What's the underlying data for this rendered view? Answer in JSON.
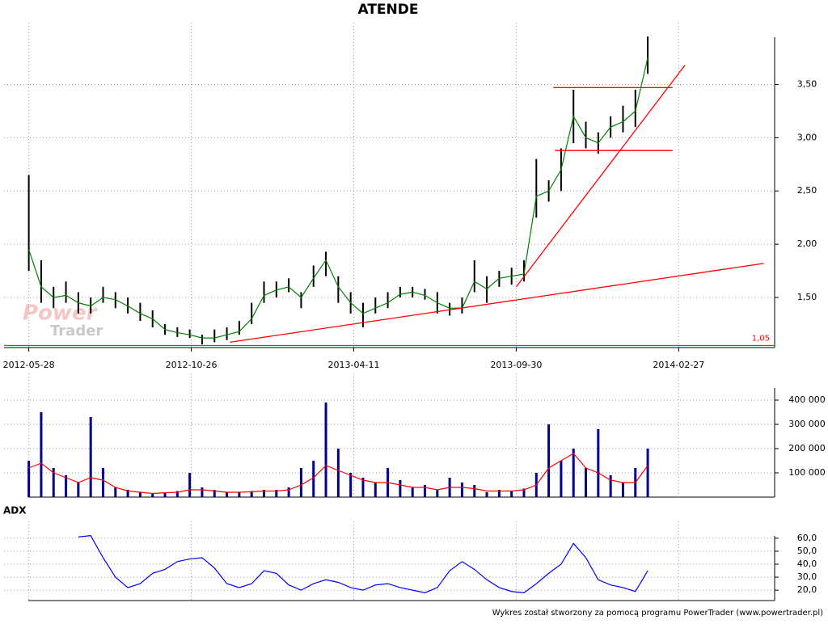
{
  "chart_data": [
    {
      "type": "ohlc",
      "title": "ATENDE",
      "color": "#000000",
      "x": [
        0,
        8,
        16,
        24,
        32,
        40,
        48,
        56,
        64,
        72,
        80,
        88,
        96,
        104,
        112,
        120,
        128,
        136,
        144,
        152,
        160,
        168,
        176,
        184,
        192,
        200,
        208,
        216,
        224,
        232,
        240,
        248,
        256,
        264,
        272,
        280,
        288,
        296,
        304,
        312,
        320,
        328,
        336,
        344,
        352,
        360,
        368,
        376,
        384,
        392,
        400
      ],
      "high": [
        2.65,
        1.85,
        1.6,
        1.65,
        1.55,
        1.5,
        1.6,
        1.55,
        1.5,
        1.45,
        1.38,
        1.25,
        1.22,
        1.2,
        1.15,
        1.2,
        1.22,
        1.28,
        1.45,
        1.65,
        1.65,
        1.68,
        1.55,
        1.8,
        1.93,
        1.7,
        1.55,
        1.45,
        1.5,
        1.55,
        1.6,
        1.6,
        1.58,
        1.55,
        1.45,
        1.5,
        1.85,
        1.7,
        1.75,
        1.78,
        1.85,
        2.8,
        2.6,
        2.9,
        3.45,
        3.15,
        3.05,
        3.2,
        3.3,
        3.45,
        3.95
      ],
      "low": [
        1.75,
        1.45,
        1.4,
        1.45,
        1.35,
        1.35,
        1.45,
        1.4,
        1.35,
        1.28,
        1.22,
        1.15,
        1.13,
        1.12,
        1.06,
        1.08,
        1.1,
        1.15,
        1.25,
        1.45,
        1.5,
        1.55,
        1.4,
        1.6,
        1.7,
        1.45,
        1.35,
        1.22,
        1.35,
        1.4,
        1.5,
        1.5,
        1.48,
        1.35,
        1.33,
        1.35,
        1.55,
        1.45,
        1.6,
        1.62,
        1.65,
        2.25,
        2.4,
        2.5,
        2.95,
        2.9,
        2.85,
        3.0,
        3.05,
        3.1,
        3.6
      ],
      "ma": {
        "color": "#008000",
        "values": [
          1.95,
          1.6,
          1.5,
          1.52,
          1.45,
          1.42,
          1.5,
          1.48,
          1.42,
          1.35,
          1.3,
          1.2,
          1.17,
          1.15,
          1.12,
          1.12,
          1.15,
          1.18,
          1.3,
          1.52,
          1.57,
          1.6,
          1.5,
          1.68,
          1.85,
          1.6,
          1.45,
          1.35,
          1.4,
          1.45,
          1.53,
          1.55,
          1.52,
          1.45,
          1.4,
          1.4,
          1.65,
          1.58,
          1.68,
          1.7,
          1.72,
          2.45,
          2.5,
          2.7,
          3.2,
          3.0,
          2.95,
          3.1,
          3.15,
          3.25,
          3.75
        ]
      },
      "xlim": [
        -16,
        482
      ],
      "xticks": [
        {
          "value": 0,
          "label": "2012-05-28"
        },
        {
          "value": 105,
          "label": "2012-10-26"
        },
        {
          "value": 210,
          "label": "2013-04-11"
        },
        {
          "value": 315,
          "label": "2013-09-30"
        },
        {
          "value": 420,
          "label": "2014-02-27"
        }
      ],
      "ylim": [
        1.03,
        4.08
      ],
      "yticks": [
        {
          "value": 1.5,
          "label": "1,50"
        },
        {
          "value": 2,
          "label": "2,00"
        },
        {
          "value": 2.5,
          "label": "2,50"
        },
        {
          "value": 3,
          "label": "3,00"
        },
        {
          "value": 3.5,
          "label": "3,50"
        }
      ],
      "hline": {
        "value": 1.05,
        "label": "1,05",
        "color": "#ff0000"
      },
      "lines": {
        "color": "#ff0000",
        "items": [
          {
            "x": [
              130,
              475
            ],
            "y": [
              1.08,
              1.82
            ]
          },
          {
            "x": [
              315,
              424
            ],
            "y": [
              1.6,
              3.68
            ]
          },
          {
            "x": [
              339,
              416
            ],
            "y": [
              3.47,
              3.47
            ]
          },
          {
            "x": [
              340,
              416
            ],
            "y": [
              2.88,
              2.88
            ]
          }
        ]
      },
      "grid": true
    },
    {
      "type": "bar",
      "color": "#00008b",
      "x": [
        0,
        8,
        16,
        24,
        32,
        40,
        48,
        56,
        64,
        72,
        80,
        88,
        96,
        104,
        112,
        120,
        128,
        136,
        144,
        152,
        160,
        168,
        176,
        184,
        192,
        200,
        208,
        216,
        224,
        232,
        240,
        248,
        256,
        264,
        272,
        280,
        288,
        296,
        304,
        312,
        320,
        328,
        336,
        344,
        352,
        360,
        368,
        376,
        384,
        392,
        400
      ],
      "values": [
        150000,
        350000,
        120000,
        90000,
        60000,
        330000,
        120000,
        40000,
        30000,
        20000,
        15000,
        20000,
        25000,
        100000,
        40000,
        30000,
        20000,
        20000,
        25000,
        30000,
        30000,
        40000,
        120000,
        150000,
        390000,
        200000,
        100000,
        80000,
        60000,
        120000,
        70000,
        40000,
        50000,
        30000,
        80000,
        60000,
        50000,
        20000,
        30000,
        25000,
        35000,
        100000,
        300000,
        150000,
        200000,
        120000,
        280000,
        90000,
        60000,
        120000,
        200000
      ],
      "ma": {
        "color": "#ff0000",
        "values": [
          120000,
          140000,
          100000,
          80000,
          60000,
          80000,
          70000,
          40000,
          25000,
          20000,
          15000,
          18000,
          20000,
          30000,
          30000,
          25000,
          20000,
          20000,
          22000,
          25000,
          25000,
          30000,
          50000,
          80000,
          130000,
          110000,
          90000,
          70000,
          60000,
          60000,
          50000,
          40000,
          40000,
          30000,
          40000,
          40000,
          35000,
          25000,
          25000,
          25000,
          30000,
          50000,
          120000,
          150000,
          180000,
          120000,
          100000,
          70000,
          60000,
          60000,
          130000
        ]
      },
      "xlim": [
        -16,
        482
      ],
      "ylim": [
        0,
        510000
      ],
      "yticks": [
        {
          "value": 100000,
          "label": "100 000"
        },
        {
          "value": 200000,
          "label": "200 000"
        },
        {
          "value": 300000,
          "label": "300 000"
        },
        {
          "value": 400000,
          "label": "400 000"
        }
      ],
      "grid": true
    },
    {
      "type": "line",
      "title": "ADX",
      "color": "#0000ff",
      "x": [
        0,
        8,
        16,
        24,
        32,
        40,
        48,
        56,
        64,
        72,
        80,
        88,
        96,
        104,
        112,
        120,
        128,
        136,
        144,
        152,
        160,
        168,
        176,
        184,
        192,
        200,
        208,
        216,
        224,
        232,
        240,
        248,
        256,
        264,
        272,
        280,
        288,
        296,
        304,
        312,
        320,
        328,
        336,
        344,
        352,
        360,
        368,
        376,
        384,
        392,
        400
      ],
      "values": [
        null,
        null,
        null,
        null,
        61,
        62,
        45,
        30,
        22,
        25,
        33,
        36,
        42,
        44,
        45,
        37,
        25,
        22,
        25,
        35,
        33,
        24,
        20,
        25,
        28,
        26,
        22,
        20,
        24,
        25,
        22,
        20,
        18,
        22,
        35,
        42,
        36,
        28,
        22,
        19,
        18,
        25,
        33,
        40,
        56,
        45,
        28,
        24,
        22,
        19,
        35
      ],
      "xlim": [
        -16,
        482
      ],
      "ylim": [
        12,
        73
      ],
      "yticks": [
        {
          "value": 20,
          "label": "20,0"
        },
        {
          "value": 30,
          "label": "30,0"
        },
        {
          "value": 40,
          "label": "40,0"
        },
        {
          "value": 50,
          "label": "50,0"
        },
        {
          "value": 60,
          "label": "60,0"
        }
      ],
      "grid": true
    }
  ],
  "watermark": [
    "Power",
    "Trader"
  ],
  "footer": "Wykres został stworzony za pomocą programu PowerTrader (www.powertrader.pl)"
}
